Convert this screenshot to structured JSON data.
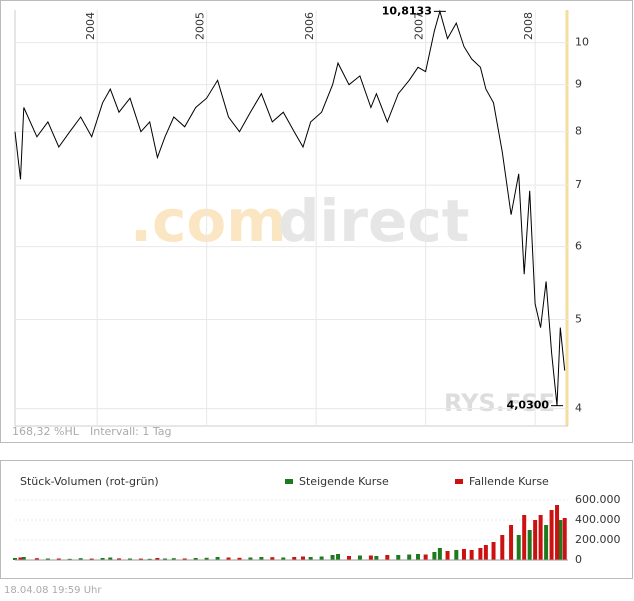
{
  "chart_data": [
    {
      "type": "line",
      "log_scale": true,
      "grid": true,
      "watermark": [
        ".com",
        "direct"
      ],
      "symbol": "RYS.FSE",
      "range_note": "168,32 %HL",
      "interval_note": "Intervall: 1 Tag",
      "x": [
        2003.25,
        2003.3,
        2003.33,
        2003.45,
        2003.55,
        2003.65,
        2003.75,
        2003.85,
        2003.95,
        2004.05,
        2004.12,
        2004.2,
        2004.3,
        2004.4,
        2004.48,
        2004.55,
        2004.62,
        2004.7,
        2004.8,
        2004.9,
        2005.0,
        2005.1,
        2005.2,
        2005.3,
        2005.4,
        2005.5,
        2005.6,
        2005.7,
        2005.8,
        2005.88,
        2005.95,
        2006.05,
        2006.15,
        2006.2,
        2006.3,
        2006.4,
        2006.5,
        2006.55,
        2006.65,
        2006.75,
        2006.85,
        2006.93,
        2007.0,
        2007.08,
        2007.13,
        2007.2,
        2007.28,
        2007.35,
        2007.42,
        2007.5,
        2007.55,
        2007.62,
        2007.7,
        2007.78,
        2007.85,
        2007.9,
        2007.95,
        2008.0,
        2008.05,
        2008.1,
        2008.15,
        2008.2,
        2008.23,
        2008.27
      ],
      "series": [
        {
          "name": "RYS.FSE",
          "color": "#000000",
          "values": [
            8.0,
            7.1,
            8.5,
            7.9,
            8.2,
            7.7,
            8.0,
            8.3,
            7.9,
            8.6,
            8.9,
            8.4,
            8.7,
            8.0,
            8.2,
            7.5,
            7.9,
            8.3,
            8.1,
            8.5,
            8.7,
            9.1,
            8.3,
            8.0,
            8.4,
            8.8,
            8.2,
            8.4,
            8.0,
            7.7,
            8.2,
            8.4,
            9.0,
            9.5,
            9.0,
            9.2,
            8.5,
            8.8,
            8.2,
            8.8,
            9.1,
            9.4,
            9.3,
            10.3,
            10.8133,
            10.1,
            10.5,
            9.9,
            9.6,
            9.4,
            8.9,
            8.6,
            7.6,
            6.5,
            7.2,
            5.6,
            6.9,
            5.2,
            4.9,
            5.5,
            4.6,
            4.03,
            4.9,
            4.4
          ]
        }
      ],
      "annotations": [
        {
          "label": "10,8133",
          "value": 10.8133,
          "x": 2007.13
        },
        {
          "label": "4,0300",
          "value": 4.03,
          "x": 2008.2
        }
      ],
      "xlim": [
        2003.25,
        2008.3
      ],
      "xticks": [
        2004,
        2005,
        2006,
        2007,
        2008
      ],
      "ylim": [
        3.83,
        10.85
      ],
      "yticks": [
        4,
        5,
        6,
        7,
        8,
        9,
        10
      ]
    },
    {
      "type": "bar",
      "title": "Stück-Volumen (rot-grün)",
      "grid": true,
      "x": [
        2003.25,
        2003.3,
        2003.33,
        2003.45,
        2003.55,
        2003.65,
        2003.75,
        2003.85,
        2003.95,
        2004.05,
        2004.12,
        2004.2,
        2004.3,
        2004.4,
        2004.48,
        2004.55,
        2004.62,
        2004.7,
        2004.8,
        2004.9,
        2005.0,
        2005.1,
        2005.2,
        2005.3,
        2005.4,
        2005.5,
        2005.6,
        2005.7,
        2005.8,
        2005.88,
        2005.95,
        2006.05,
        2006.15,
        2006.2,
        2006.3,
        2006.4,
        2006.5,
        2006.55,
        2006.65,
        2006.75,
        2006.85,
        2006.93,
        2007.0,
        2007.08,
        2007.13,
        2007.2,
        2007.28,
        2007.35,
        2007.42,
        2007.5,
        2007.55,
        2007.62,
        2007.7,
        2007.78,
        2007.85,
        2007.9,
        2007.95,
        2008.0,
        2008.05,
        2008.1,
        2008.15,
        2008.2,
        2008.23,
        2008.27
      ],
      "series": [
        {
          "name": "Steigende Kurse",
          "color": "#1e7a1e",
          "values": [
            20000,
            null,
            30000,
            null,
            15000,
            null,
            12000,
            18000,
            null,
            20000,
            25000,
            null,
            15000,
            null,
            12000,
            null,
            15000,
            18000,
            null,
            20000,
            22000,
            30000,
            null,
            null,
            25000,
            30000,
            null,
            25000,
            null,
            null,
            30000,
            35000,
            50000,
            60000,
            null,
            45000,
            null,
            40000,
            null,
            50000,
            55000,
            60000,
            null,
            80000,
            120000,
            null,
            100000,
            null,
            null,
            null,
            null,
            null,
            null,
            null,
            250000,
            null,
            300000,
            null,
            null,
            350000,
            null,
            null,
            400000,
            null
          ]
        },
        {
          "name": "Fallende Kurse",
          "color": "#cc1111",
          "values": [
            null,
            25000,
            null,
            18000,
            null,
            15000,
            null,
            null,
            14000,
            null,
            null,
            16000,
            null,
            14000,
            null,
            20000,
            null,
            null,
            15000,
            null,
            null,
            null,
            25000,
            22000,
            null,
            null,
            28000,
            null,
            30000,
            35000,
            null,
            null,
            null,
            null,
            40000,
            null,
            45000,
            null,
            50000,
            null,
            null,
            null,
            55000,
            null,
            null,
            90000,
            null,
            110000,
            100000,
            120000,
            150000,
            180000,
            250000,
            350000,
            null,
            450000,
            null,
            400000,
            450000,
            null,
            500000,
            550000,
            null,
            420000
          ]
        }
      ],
      "xlim": [
        2003.25,
        2008.3
      ],
      "ylim": [
        0,
        680000
      ],
      "yticks": [
        0,
        {
          "value": 200000,
          "label": "200.000"
        },
        {
          "value": 400000,
          "label": "400.000"
        },
        {
          "value": 600000,
          "label": "600.000"
        }
      ]
    }
  ],
  "footer": "18.04.08   19:59 Uhr"
}
